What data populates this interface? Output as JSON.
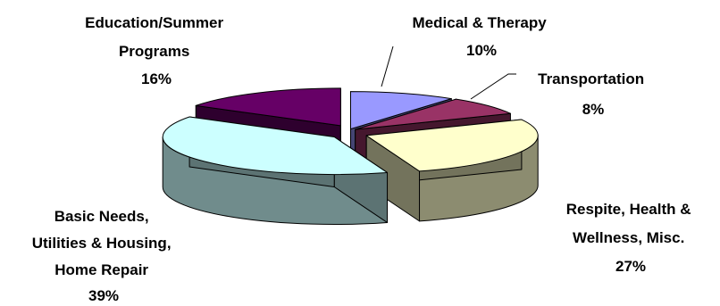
{
  "chart_data": {
    "type": "pie",
    "style": "exploded 3D pie",
    "slices": [
      {
        "label_lines": [
          "Medical & Therapy",
          "10%"
        ],
        "value": 10,
        "color": "#9999FF"
      },
      {
        "label_lines": [
          "Transportation",
          "8%"
        ],
        "value": 8,
        "color": "#993366"
      },
      {
        "label_lines": [
          "Respite, Health &",
          "Wellness, Misc.",
          "27%"
        ],
        "value": 27,
        "color": "#FFFFCC"
      },
      {
        "label_lines": [
          "Basic Needs,",
          "Utilities & Housing,",
          "Home Repair",
          "39%"
        ],
        "value": 39,
        "color": "#CCFFFF"
      },
      {
        "label_lines": [
          "Education/Summer",
          "Programs",
          "16%"
        ],
        "value": 16,
        "color": "#660066"
      }
    ]
  }
}
